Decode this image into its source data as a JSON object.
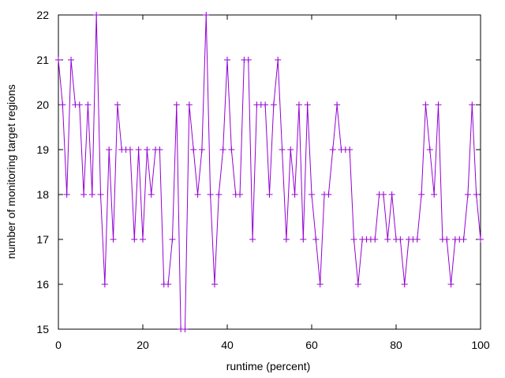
{
  "chart_data": {
    "type": "line",
    "title": "",
    "xlabel": "runtime (percent)",
    "ylabel": "number of monitoring target regions",
    "xlim": [
      0,
      100
    ],
    "ylim": [
      15,
      22
    ],
    "xticks": [
      0,
      20,
      40,
      60,
      80,
      100
    ],
    "yticks": [
      15,
      16,
      17,
      18,
      19,
      20,
      21,
      22
    ],
    "grid": false,
    "legend": "none",
    "series": [
      {
        "color": "#9400d3",
        "marker": "plus",
        "x": [
          0,
          1,
          2,
          3,
          4,
          5,
          6,
          7,
          8,
          9,
          10,
          11,
          12,
          13,
          14,
          15,
          16,
          17,
          18,
          19,
          20,
          21,
          22,
          23,
          24,
          25,
          26,
          27,
          28,
          29,
          30,
          31,
          32,
          33,
          34,
          35,
          36,
          37,
          38,
          39,
          40,
          41,
          42,
          43,
          44,
          45,
          46,
          47,
          48,
          49,
          50,
          51,
          52,
          53,
          54,
          55,
          56,
          57,
          58,
          59,
          60,
          61,
          62,
          63,
          64,
          65,
          66,
          67,
          68,
          69,
          70,
          71,
          72,
          73,
          74,
          75,
          76,
          77,
          78,
          79,
          80,
          81,
          82,
          83,
          84,
          85,
          86,
          87,
          88,
          89,
          90,
          91,
          92,
          93,
          94,
          95,
          96,
          97,
          98,
          99,
          100
        ],
        "y": [
          21,
          20,
          18,
          21,
          20,
          20,
          18,
          20,
          18,
          22,
          18,
          16,
          19,
          17,
          20,
          19,
          19,
          19,
          17,
          19,
          17,
          19,
          18,
          19,
          19,
          16,
          16,
          17,
          20,
          15,
          15,
          20,
          19,
          18,
          19,
          22,
          18,
          16,
          18,
          19,
          21,
          19,
          18,
          18,
          21,
          21,
          17,
          20,
          20,
          20,
          18,
          20,
          21,
          19,
          17,
          19,
          18,
          20,
          17,
          20,
          18,
          17,
          16,
          18,
          18,
          19,
          20,
          19,
          19,
          19,
          17,
          16,
          17,
          17,
          17,
          17,
          18,
          18,
          17,
          18,
          17,
          17,
          16,
          17,
          17,
          17,
          18,
          20,
          19,
          18,
          20,
          17,
          17,
          16,
          17,
          17,
          17,
          18,
          20,
          18,
          17
        ]
      }
    ]
  }
}
